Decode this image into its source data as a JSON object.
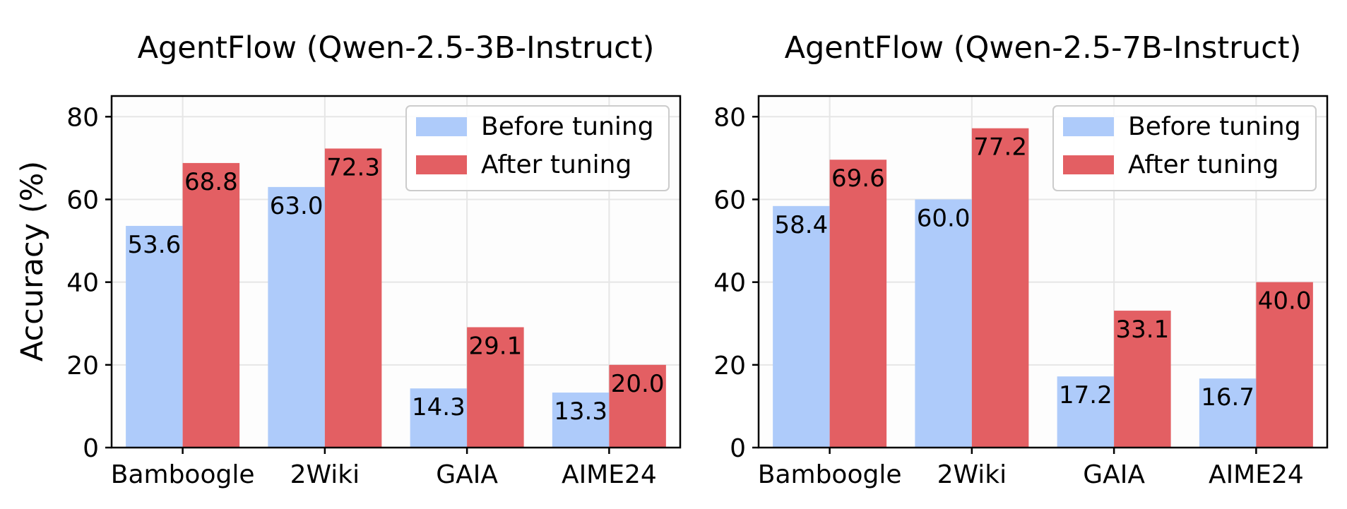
{
  "colors": {
    "before": "#aecbfa",
    "after": "#e35f63",
    "grid": "#e6e6e6",
    "axes": "#000000"
  },
  "ylabel": "Accuracy (%)",
  "legend": {
    "before": "Before tuning",
    "after": "After tuning"
  },
  "chart_data": [
    {
      "type": "bar",
      "title": "AgentFlow (Qwen-2.5-3B-Instruct)",
      "categories": [
        "Bamboogle",
        "2Wiki",
        "GAIA",
        "AIME24"
      ],
      "series": [
        {
          "name": "Before tuning",
          "values": [
            53.6,
            63.0,
            14.3,
            13.3
          ],
          "labels": [
            "53.6",
            "63.0",
            "14.3",
            "13.3"
          ]
        },
        {
          "name": "After tuning",
          "values": [
            68.8,
            72.3,
            29.1,
            20.0
          ],
          "labels": [
            "68.8",
            "72.3",
            "29.1",
            "20.0"
          ]
        }
      ],
      "ylabel": "Accuracy (%)",
      "ylim": [
        0,
        85
      ],
      "yticks": [
        "0",
        "20",
        "40",
        "60",
        "80"
      ],
      "grid": true,
      "legend_position": "top-right"
    },
    {
      "type": "bar",
      "title": "AgentFlow (Qwen-2.5-7B-Instruct)",
      "categories": [
        "Bamboogle",
        "2Wiki",
        "GAIA",
        "AIME24"
      ],
      "series": [
        {
          "name": "Before tuning",
          "values": [
            58.4,
            60.0,
            17.2,
            16.7
          ],
          "labels": [
            "58.4",
            "60.0",
            "17.2",
            "16.7"
          ]
        },
        {
          "name": "After tuning",
          "values": [
            69.6,
            77.2,
            33.1,
            40.0
          ],
          "labels": [
            "69.6",
            "77.2",
            "33.1",
            "40.0"
          ]
        }
      ],
      "ylim": [
        0,
        85
      ],
      "yticks": [
        "0",
        "20",
        "40",
        "60",
        "80"
      ],
      "grid": true,
      "legend_position": "top-right"
    }
  ]
}
